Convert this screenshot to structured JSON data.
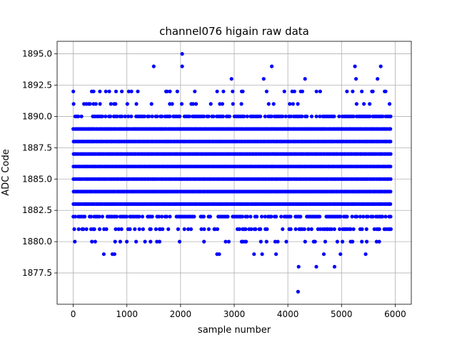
{
  "chart_data": {
    "type": "scatter",
    "title": "channel076 higain raw data",
    "xlabel": "sample number",
    "ylabel": "ADC Code",
    "xlim": [
      -300,
      6300
    ],
    "ylim": [
      1875,
      1896
    ],
    "xticks": [
      0,
      1000,
      2000,
      3000,
      4000,
      5000,
      6000
    ],
    "xtick_labels": [
      "0",
      "1000",
      "2000",
      "3000",
      "4000",
      "5000",
      "6000"
    ],
    "yticks": [
      1877.5,
      1880.0,
      1882.5,
      1885.0,
      1887.5,
      1890.0,
      1892.5,
      1895.0
    ],
    "ytick_labels": [
      "1877.5",
      "1880.0",
      "1882.5",
      "1885.0",
      "1887.5",
      "1890.0",
      "1892.5",
      "1895.0"
    ],
    "grid": true,
    "series": [
      {
        "color": "#0000ff",
        "marker": "circle",
        "n_samples": 5920,
        "dense_levels": [
          1882,
          1883,
          1884,
          1885,
          1886,
          1887,
          1888,
          1889,
          1890
        ],
        "sparse_levels": [
          1880,
          1881,
          1891,
          1892
        ],
        "points": [
          {
            "x": 2030,
            "y": 1895
          },
          {
            "x": 1500,
            "y": 1894
          },
          {
            "x": 2030,
            "y": 1894
          },
          {
            "x": 3700,
            "y": 1894
          },
          {
            "x": 5250,
            "y": 1894
          },
          {
            "x": 5730,
            "y": 1894
          },
          {
            "x": 2950,
            "y": 1893
          },
          {
            "x": 3550,
            "y": 1893
          },
          {
            "x": 4320,
            "y": 1893
          },
          {
            "x": 5270,
            "y": 1893
          },
          {
            "x": 5670,
            "y": 1893
          },
          {
            "x": 570,
            "y": 1879
          },
          {
            "x": 730,
            "y": 1879
          },
          {
            "x": 770,
            "y": 1879
          },
          {
            "x": 2680,
            "y": 1879
          },
          {
            "x": 2720,
            "y": 1879
          },
          {
            "x": 3370,
            "y": 1879
          },
          {
            "x": 3520,
            "y": 1879
          },
          {
            "x": 3780,
            "y": 1879
          },
          {
            "x": 4670,
            "y": 1879
          },
          {
            "x": 4980,
            "y": 1879
          },
          {
            "x": 5450,
            "y": 1879
          },
          {
            "x": 4200,
            "y": 1878
          },
          {
            "x": 4530,
            "y": 1878
          },
          {
            "x": 4870,
            "y": 1878
          },
          {
            "x": 4190,
            "y": 1876
          }
        ]
      }
    ]
  }
}
